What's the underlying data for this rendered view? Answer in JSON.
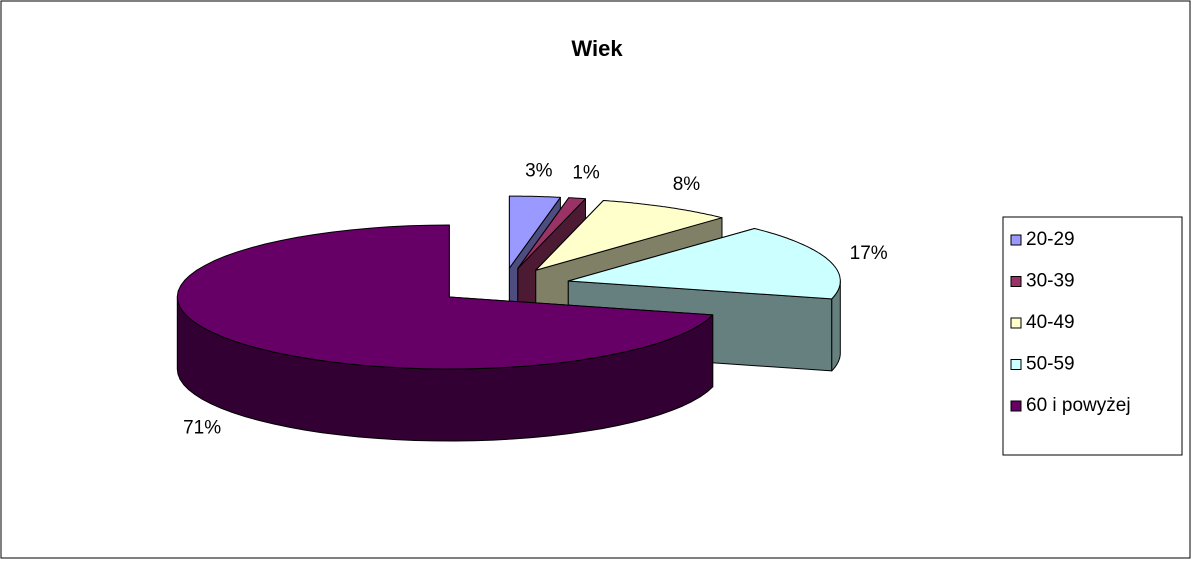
{
  "chart_data": {
    "type": "pie",
    "title": "Wiek",
    "categories": [
      "20-29",
      "30-39",
      "40-49",
      "50-59",
      "60 i powyżej"
    ],
    "values": [
      3,
      1,
      8,
      17,
      71
    ],
    "value_labels": [
      "3%",
      "1%",
      "8%",
      "17%",
      "71%"
    ],
    "colors": [
      "#9999ff",
      "#993366",
      "#ffffcc",
      "#ccffff",
      "#660066"
    ],
    "legend": "right"
  }
}
